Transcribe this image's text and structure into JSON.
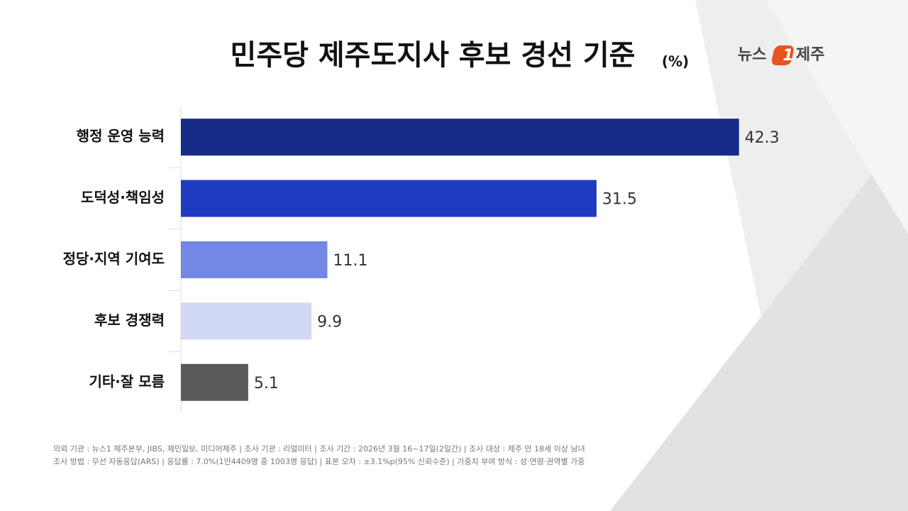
{
  "chart_data": {
    "type": "bar",
    "orientation": "horizontal",
    "title": "민주당 제주도지사 후보 경선 기준",
    "unit": "(%)",
    "categories": [
      "행정 운영 능력",
      "도덕성·책임성",
      "정당·지역 기여도",
      "후보 경쟁력",
      "기타·잘 모름"
    ],
    "values": [
      42.3,
      31.5,
      11.1,
      9.9,
      5.1
    ],
    "colors": [
      "#172a87",
      "#1f3bbf",
      "#7388e3",
      "#d0d8f5",
      "#5a5a5a"
    ],
    "xlim": [
      0,
      45
    ]
  },
  "logo": [
    "뉴스",
    "1",
    "제주"
  ],
  "footnotes": [
    "의뢰 기관 : 뉴스1 제주본부, JIBS, 제민일보, 미디어제주 | 조사 기관 : 리얼미터 | 조사 기간 : 2026년 3월 16~17일(2일간) | 조사 대상 : 제주 만 18세 이상 남녀",
    "조사 방법 : 무선 자동응답(ARS) | 응답률 : 7.0%(1만4409명 중 1003명 응답) | 표본 오차 : ±3.1%p(95% 신뢰수준) | 가중치 부여 방식 : 성·연령·권역별 가중"
  ]
}
